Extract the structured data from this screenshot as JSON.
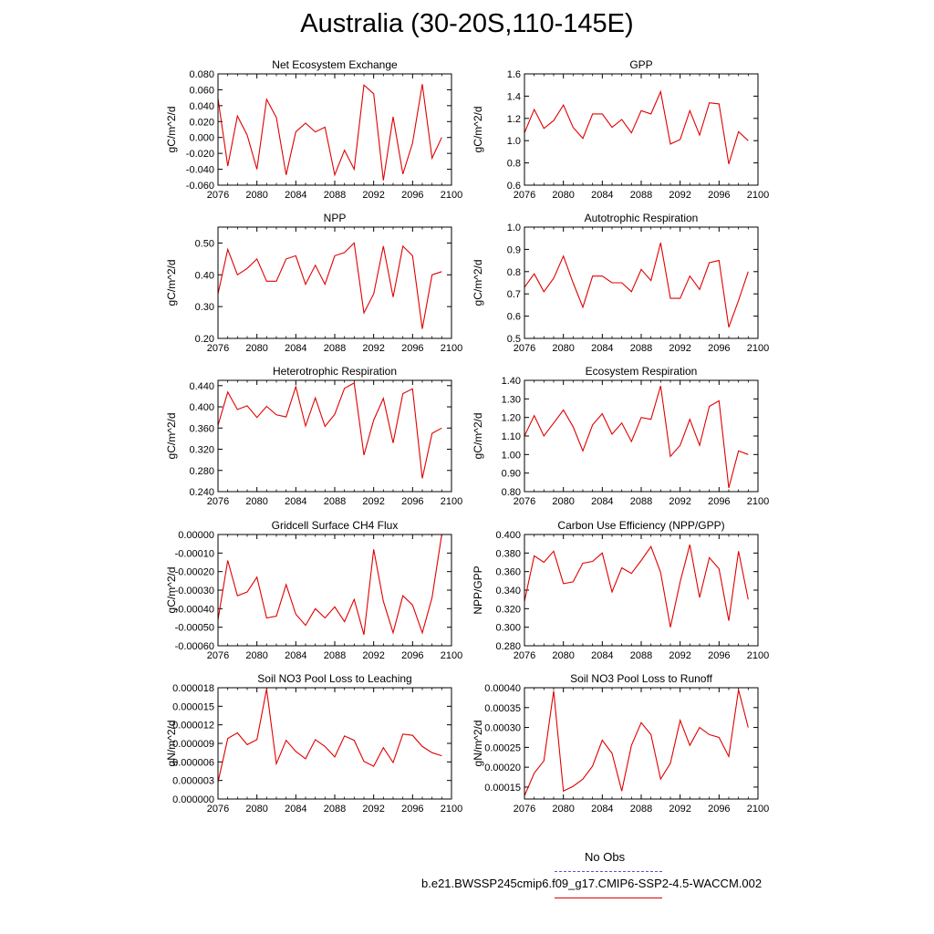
{
  "page": {
    "title": "Australia (30-20S,110-145E)"
  },
  "legend": {
    "obs_label": "No Obs",
    "obs_color": "#5555dd",
    "model_label": "b.e21.BWSSP245cmip6.f09_g17.CMIP6-SSP2-4.5-WACCM.002",
    "model_color": "#e00000"
  },
  "chart_data": [
    {
      "type": "line",
      "title": "Net Ecosystem Exchange",
      "xlabel": "",
      "ylabel": "gC/m^2/d",
      "xlim": [
        2076,
        2100
      ],
      "ylim": [
        -0.06,
        0.08
      ],
      "xticks": [
        "2076",
        "2080",
        "2084",
        "2088",
        "2092",
        "2096",
        "2100"
      ],
      "yticks": [
        "-0.060",
        "-0.040",
        "-0.020",
        "0.000",
        "0.020",
        "0.040",
        "0.060",
        "0.080"
      ],
      "x": [
        2075,
        2076,
        2077,
        2078,
        2079,
        2080,
        2081,
        2082,
        2083,
        2084,
        2085,
        2086,
        2087,
        2088,
        2089,
        2090,
        2091,
        2092,
        2093,
        2094,
        2095,
        2096,
        2097,
        2098,
        2099
      ],
      "series": [
        {
          "values": [
            0.008,
            0.049,
            -0.036,
            0.027,
            0.003,
            -0.04,
            0.048,
            0.025,
            -0.047,
            0.007,
            0.018,
            0.007,
            0.013,
            -0.047,
            -0.016,
            -0.04,
            0.066,
            0.055,
            -0.054,
            0.026,
            -0.046,
            -0.007,
            0.067,
            -0.026,
            0.0
          ],
          "color": "#e00000"
        }
      ]
    },
    {
      "type": "line",
      "title": "GPP",
      "xlabel": "",
      "ylabel": "gC/m^2/d",
      "xlim": [
        2076,
        2100
      ],
      "ylim": [
        0.6,
        1.6
      ],
      "xticks": [
        "2076",
        "2080",
        "2084",
        "2088",
        "2092",
        "2096",
        "2100"
      ],
      "yticks": [
        "0.6",
        "0.8",
        "1.0",
        "1.2",
        "1.4",
        "1.6"
      ],
      "x": [
        2075,
        2076,
        2077,
        2078,
        2079,
        2080,
        2081,
        2082,
        2083,
        2084,
        2085,
        2086,
        2087,
        2088,
        2089,
        2090,
        2091,
        2092,
        2093,
        2094,
        2095,
        2096,
        2097,
        2098,
        2099
      ],
      "series": [
        {
          "values": [
            1.24,
            1.07,
            1.28,
            1.11,
            1.18,
            1.32,
            1.12,
            1.02,
            1.24,
            1.24,
            1.12,
            1.19,
            1.07,
            1.27,
            1.24,
            1.44,
            0.97,
            1.01,
            1.27,
            1.05,
            1.34,
            1.33,
            0.79,
            1.08,
            1.0
          ],
          "color": "#e00000"
        }
      ]
    },
    {
      "type": "line",
      "title": "NPP",
      "xlabel": "",
      "ylabel": "gC/m^2/d",
      "xlim": [
        2076,
        2100
      ],
      "ylim": [
        0.2,
        0.55
      ],
      "xticks": [
        "2076",
        "2080",
        "2084",
        "2088",
        "2092",
        "2096",
        "2100"
      ],
      "yticks": [
        "0.20",
        "0.30",
        "0.40",
        "0.50"
      ],
      "x": [
        2075,
        2076,
        2077,
        2078,
        2079,
        2080,
        2081,
        2082,
        2083,
        2084,
        2085,
        2086,
        2087,
        2088,
        2089,
        2090,
        2091,
        2092,
        2093,
        2094,
        2095,
        2096,
        2097,
        2098,
        2099
      ],
      "series": [
        {
          "values": [
            0.41,
            0.34,
            0.48,
            0.4,
            0.42,
            0.45,
            0.38,
            0.38,
            0.45,
            0.46,
            0.37,
            0.43,
            0.37,
            0.46,
            0.47,
            0.5,
            0.28,
            0.34,
            0.49,
            0.33,
            0.49,
            0.46,
            0.23,
            0.4,
            0.41
          ],
          "color": "#e00000"
        }
      ]
    },
    {
      "type": "line",
      "title": "Autotrophic Respiration",
      "xlabel": "",
      "ylabel": "gC/m^2/d",
      "xlim": [
        2076,
        2100
      ],
      "ylim": [
        0.5,
        1.0
      ],
      "xticks": [
        "2076",
        "2080",
        "2084",
        "2088",
        "2092",
        "2096",
        "2100"
      ],
      "yticks": [
        "0.5",
        "0.6",
        "0.7",
        "0.8",
        "0.9",
        "1.0"
      ],
      "x": [
        2075,
        2076,
        2077,
        2078,
        2079,
        2080,
        2081,
        2082,
        2083,
        2084,
        2085,
        2086,
        2087,
        2088,
        2089,
        2090,
        2091,
        2092,
        2093,
        2094,
        2095,
        2096,
        2097,
        2098,
        2099
      ],
      "series": [
        {
          "values": [
            0.84,
            0.73,
            0.79,
            0.71,
            0.77,
            0.87,
            0.75,
            0.64,
            0.78,
            0.78,
            0.75,
            0.75,
            0.71,
            0.81,
            0.76,
            0.93,
            0.68,
            0.68,
            0.78,
            0.72,
            0.84,
            0.85,
            0.55,
            0.67,
            0.8
          ],
          "color": "#e00000"
        }
      ]
    },
    {
      "type": "line",
      "title": "Heterotrophic Respiration",
      "xlabel": "",
      "ylabel": "gC/m^2/d",
      "xlim": [
        2076,
        2100
      ],
      "ylim": [
        0.24,
        0.45
      ],
      "xticks": [
        "2076",
        "2080",
        "2084",
        "2088",
        "2092",
        "2096",
        "2100"
      ],
      "yticks": [
        "0.240",
        "0.280",
        "0.320",
        "0.360",
        "0.400",
        "0.440"
      ],
      "x": [
        2075,
        2076,
        2077,
        2078,
        2079,
        2080,
        2081,
        2082,
        2083,
        2084,
        2085,
        2086,
        2087,
        2088,
        2089,
        2090,
        2091,
        2092,
        2093,
        2094,
        2095,
        2096,
        2097,
        2098,
        2099
      ],
      "series": [
        {
          "values": [
            0.375,
            0.365,
            0.428,
            0.395,
            0.402,
            0.38,
            0.401,
            0.385,
            0.381,
            0.438,
            0.364,
            0.417,
            0.363,
            0.386,
            0.435,
            0.445,
            0.309,
            0.375,
            0.416,
            0.332,
            0.425,
            0.434,
            0.265,
            0.35,
            0.36
          ],
          "color": "#e00000"
        }
      ]
    },
    {
      "type": "line",
      "title": "Ecosystem Respiration",
      "xlabel": "",
      "ylabel": "gC/m^2/d",
      "xlim": [
        2076,
        2100
      ],
      "ylim": [
        0.8,
        1.4
      ],
      "xticks": [
        "2076",
        "2080",
        "2084",
        "2088",
        "2092",
        "2096",
        "2100"
      ],
      "yticks": [
        "0.80",
        "0.90",
        "1.00",
        "1.10",
        "1.20",
        "1.30",
        "1.40"
      ],
      "x": [
        2075,
        2076,
        2077,
        2078,
        2079,
        2080,
        2081,
        2082,
        2083,
        2084,
        2085,
        2086,
        2087,
        2088,
        2089,
        2090,
        2091,
        2092,
        2093,
        2094,
        2095,
        2096,
        2097,
        2098,
        2099
      ],
      "series": [
        {
          "values": [
            1.22,
            1.1,
            1.21,
            1.1,
            1.17,
            1.24,
            1.15,
            1.02,
            1.16,
            1.22,
            1.11,
            1.17,
            1.07,
            1.2,
            1.19,
            1.37,
            0.99,
            1.05,
            1.19,
            1.05,
            1.26,
            1.29,
            0.82,
            1.02,
            1.0
          ],
          "color": "#e00000"
        }
      ]
    },
    {
      "type": "line",
      "title": "Gridcell Surface CH4 Flux",
      "xlabel": "",
      "ylabel": "gC/m^2/d",
      "xlim": [
        2076,
        2100
      ],
      "ylim": [
        -0.0006,
        0.0
      ],
      "xticks": [
        "2076",
        "2080",
        "2084",
        "2088",
        "2092",
        "2096",
        "2100"
      ],
      "yticks": [
        "-0.00060",
        "-0.00050",
        "-0.00040",
        "-0.00030",
        "-0.00020",
        "-0.00010",
        "0.00000"
      ],
      "x": [
        2075,
        2076,
        2077,
        2078,
        2079,
        2080,
        2081,
        2082,
        2083,
        2084,
        2085,
        2086,
        2087,
        2088,
        2089,
        2090,
        2091,
        2092,
        2093,
        2094,
        2095,
        2096,
        2097,
        2098,
        2099
      ],
      "series": [
        {
          "values": [
            -0.00049,
            -0.00046,
            -0.00014,
            -0.00033,
            -0.00031,
            -0.00023,
            -0.00045,
            -0.00044,
            -0.00027,
            -0.00043,
            -0.00049,
            -0.0004,
            -0.00045,
            -0.00039,
            -0.00047,
            -0.00035,
            -0.00054,
            -8e-05,
            -0.00036,
            -0.00053,
            -0.00033,
            -0.00038,
            -0.00053,
            -0.00034,
            0.0
          ],
          "color": "#e00000"
        }
      ]
    },
    {
      "type": "line",
      "title": "Carbon Use Efficiency (NPP/GPP)",
      "xlabel": "",
      "ylabel": "NPP/GPP",
      "xlim": [
        2076,
        2100
      ],
      "ylim": [
        0.28,
        0.4
      ],
      "xticks": [
        "2076",
        "2080",
        "2084",
        "2088",
        "2092",
        "2096",
        "2100"
      ],
      "yticks": [
        "0.280",
        "0.300",
        "0.320",
        "0.340",
        "0.360",
        "0.380",
        "0.400"
      ],
      "x": [
        2075,
        2076,
        2077,
        2078,
        2079,
        2080,
        2081,
        2082,
        2083,
        2084,
        2085,
        2086,
        2087,
        2088,
        2089,
        2090,
        2091,
        2092,
        2093,
        2094,
        2095,
        2096,
        2097,
        2098,
        2099
      ],
      "series": [
        {
          "values": [
            0.327,
            0.328,
            0.377,
            0.37,
            0.382,
            0.347,
            0.349,
            0.369,
            0.371,
            0.38,
            0.338,
            0.364,
            0.358,
            0.372,
            0.387,
            0.359,
            0.3,
            0.349,
            0.389,
            0.332,
            0.375,
            0.363,
            0.307,
            0.382,
            0.33
          ],
          "color": "#e00000"
        }
      ]
    },
    {
      "type": "line",
      "title": "Soil NO3 Pool Loss to Leaching",
      "xlabel": "",
      "ylabel": "gN/m^2/d",
      "xlim": [
        2076,
        2100
      ],
      "ylim": [
        0.0,
        1.8e-05
      ],
      "xticks": [
        "2076",
        "2080",
        "2084",
        "2088",
        "2092",
        "2096",
        "2100"
      ],
      "yticks": [
        "0.000000",
        "0.000003",
        "0.000006",
        "0.000009",
        "0.000012",
        "0.000015",
        "0.000018"
      ],
      "x": [
        2075,
        2076,
        2077,
        2078,
        2079,
        2080,
        2081,
        2082,
        2083,
        2084,
        2085,
        2086,
        2087,
        2088,
        2089,
        2090,
        2091,
        2092,
        2093,
        2094,
        2095,
        2096,
        2097,
        2098,
        2099
      ],
      "series": [
        {
          "values": [
            5.2e-06,
            2.7e-06,
            9.8e-06,
            1.07e-05,
            8.8e-06,
            9.6e-06,
            1.78e-05,
            5.7e-06,
            9.5e-06,
            7.7e-06,
            6.5e-06,
            9.6e-06,
            8.5e-06,
            6.8e-06,
            1.02e-05,
            9.5e-06,
            6.1e-06,
            5.3e-06,
            8.3e-06,
            5.9e-06,
            1.05e-05,
            1.03e-05,
            8.5e-06,
            7.5e-06,
            7e-06
          ],
          "color": "#e00000"
        }
      ]
    },
    {
      "type": "line",
      "title": "Soil NO3 Pool Loss to Runoff",
      "xlabel": "",
      "ylabel": "gN/m^2/d",
      "xlim": [
        2076,
        2100
      ],
      "ylim": [
        0.00012,
        0.0004
      ],
      "xticks": [
        "2076",
        "2080",
        "2084",
        "2088",
        "2092",
        "2096",
        "2100"
      ],
      "yticks": [
        "0.00015",
        "0.00020",
        "0.00025",
        "0.00030",
        "0.00035",
        "0.00040"
      ],
      "x": [
        2075,
        2076,
        2077,
        2078,
        2079,
        2080,
        2081,
        2082,
        2083,
        2084,
        2085,
        2086,
        2087,
        2088,
        2089,
        2090,
        2091,
        2092,
        2093,
        2094,
        2095,
        2096,
        2097,
        2098,
        2099
      ],
      "series": [
        {
          "values": [
            0.000162,
            0.000128,
            0.000185,
            0.000216,
            0.000392,
            0.00014,
            0.000152,
            0.00017,
            0.000203,
            0.000268,
            0.000235,
            0.00014,
            0.000255,
            0.000312,
            0.000282,
            0.00017,
            0.00021,
            0.000318,
            0.000255,
            0.0003,
            0.000282,
            0.000275,
            0.000227,
            0.000395,
            0.0003
          ],
          "color": "#e00000"
        }
      ]
    }
  ]
}
